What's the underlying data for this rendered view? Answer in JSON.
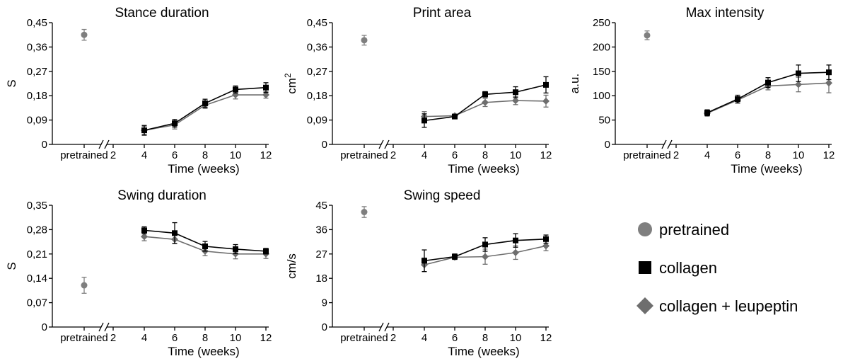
{
  "figure": {
    "legend": {
      "placement": "bottom-right",
      "entries": [
        {
          "label": "pretrained",
          "marker": "circle",
          "color": "#7f7f7f"
        },
        {
          "label": "collagen",
          "marker": "square",
          "color": "#000000"
        },
        {
          "label": "collagen + leupeptin",
          "marker": "diamond",
          "color": "#6e6e6e"
        }
      ]
    }
  },
  "chart_data": [
    {
      "type": "line",
      "title": "Stance duration",
      "xlabel": "Time (weeks)",
      "ylabel": "S",
      "ylim": [
        0,
        0.45
      ],
      "yticks": [
        "0",
        "0,09",
        "0,18",
        "0,27",
        "0,36",
        "0,45"
      ],
      "x_categories": [
        "pretrained",
        "2",
        "4",
        "6",
        "8",
        "10",
        "12"
      ],
      "pretrained": {
        "value": 0.405,
        "error": 0.02
      },
      "series": [
        {
          "name": "collagen",
          "x": [
            4,
            6,
            8,
            10,
            12
          ],
          "values": [
            0.052,
            0.078,
            0.152,
            0.203,
            0.21
          ],
          "errors": [
            0.018,
            0.014,
            0.015,
            0.013,
            0.018
          ]
        },
        {
          "name": "collagen + leupeptin",
          "x": [
            4,
            6,
            8,
            10,
            12
          ],
          "values": [
            0.052,
            0.072,
            0.145,
            0.183,
            0.183
          ],
          "errors": [
            0.015,
            0.015,
            0.012,
            0.015,
            0.012
          ]
        }
      ]
    },
    {
      "type": "line",
      "title": "Print area",
      "xlabel": "Time (weeks)",
      "ylabel": "cm²",
      "ylim": [
        0,
        0.45
      ],
      "yticks": [
        "0",
        "0,09",
        "0,18",
        "0,27",
        "0,36",
        "0,45"
      ],
      "x_categories": [
        "pretrained",
        "2",
        "4",
        "6",
        "8",
        "10",
        "12"
      ],
      "pretrained": {
        "value": 0.385,
        "error": 0.018
      },
      "series": [
        {
          "name": "collagen",
          "x": [
            4,
            6,
            8,
            10,
            12
          ],
          "values": [
            0.088,
            0.103,
            0.185,
            0.193,
            0.22
          ],
          "errors": [
            0.025,
            0.006,
            0.01,
            0.02,
            0.03
          ]
        },
        {
          "name": "collagen + leupeptin",
          "x": [
            4,
            6,
            8,
            10,
            12
          ],
          "values": [
            0.103,
            0.106,
            0.155,
            0.162,
            0.16
          ],
          "errors": [
            0.018,
            0.006,
            0.015,
            0.015,
            0.022
          ]
        }
      ]
    },
    {
      "type": "line",
      "title": "Max intensity",
      "xlabel": "Time (weeks)",
      "ylabel": "a.u.",
      "ylim": [
        0,
        250
      ],
      "yticks": [
        "0",
        "50",
        "100",
        "150",
        "200",
        "250"
      ],
      "x_categories": [
        "pretrained",
        "2",
        "4",
        "6",
        "8",
        "10",
        "12"
      ],
      "pretrained": {
        "value": 224,
        "error": 9
      },
      "series": [
        {
          "name": "collagen",
          "x": [
            4,
            6,
            8,
            10,
            12
          ],
          "values": [
            65,
            93,
            127,
            146,
            148
          ],
          "errors": [
            6,
            8,
            10,
            17,
            15
          ]
        },
        {
          "name": "collagen + leupeptin",
          "x": [
            4,
            6,
            8,
            10,
            12
          ],
          "values": [
            64,
            91,
            120,
            123,
            126
          ],
          "errors": [
            6,
            6,
            8,
            15,
            20
          ]
        }
      ]
    },
    {
      "type": "line",
      "title": "Swing duration",
      "xlabel": "Time (weeks)",
      "ylabel": "S",
      "ylim": [
        0,
        0.35
      ],
      "yticks": [
        "0",
        "0,07",
        "0,14",
        "0,21",
        "0,28",
        "0,35"
      ],
      "x_categories": [
        "pretrained",
        "2",
        "4",
        "6",
        "8",
        "10",
        "12"
      ],
      "pretrained": {
        "value": 0.12,
        "error": 0.023
      },
      "series": [
        {
          "name": "collagen",
          "x": [
            4,
            6,
            8,
            10,
            12
          ],
          "values": [
            0.278,
            0.27,
            0.232,
            0.224,
            0.218
          ],
          "errors": [
            0.01,
            0.03,
            0.014,
            0.013,
            0.008
          ]
        },
        {
          "name": "collagen + leupeptin",
          "x": [
            4,
            6,
            8,
            10,
            12
          ],
          "values": [
            0.26,
            0.252,
            0.218,
            0.21,
            0.21
          ],
          "errors": [
            0.012,
            0.012,
            0.013,
            0.014,
            0.013
          ]
        }
      ]
    },
    {
      "type": "line",
      "title": "Swing speed",
      "xlabel": "Time (weeks)",
      "ylabel": "cm/s",
      "ylim": [
        0,
        45
      ],
      "yticks": [
        "0",
        "9",
        "18",
        "27",
        "36",
        "45"
      ],
      "x_categories": [
        "pretrained",
        "2",
        "4",
        "6",
        "8",
        "10",
        "12"
      ],
      "pretrained": {
        "value": 42.5,
        "error": 2
      },
      "series": [
        {
          "name": "collagen",
          "x": [
            4,
            6,
            8,
            10,
            12
          ],
          "values": [
            24.5,
            26,
            30.5,
            32,
            32.5
          ],
          "errors": [
            4,
            1,
            2.5,
            2.5,
            1.5
          ]
        },
        {
          "name": "collagen + leupeptin",
          "x": [
            4,
            6,
            8,
            10,
            12
          ],
          "values": [
            23,
            25.8,
            26,
            27.5,
            30
          ],
          "errors": [
            2.5,
            0.8,
            2.8,
            2.5,
            1.8
          ]
        }
      ]
    }
  ]
}
